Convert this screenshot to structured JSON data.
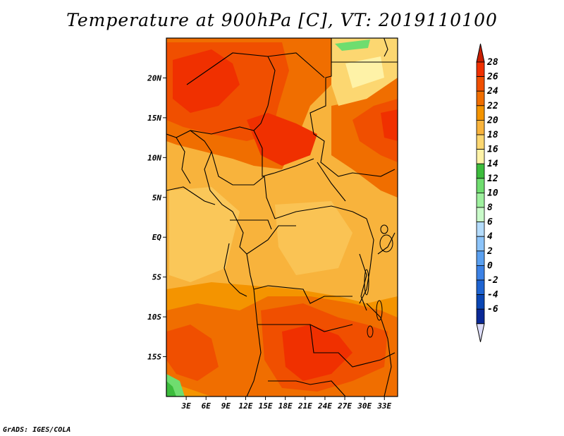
{
  "title": "Temperature at 900hPa [C], VT: 2019110100",
  "footer": "GrADS: IGES/COLA",
  "lat_ticks": [
    {
      "label": "20N",
      "lat": 20
    },
    {
      "label": "15N",
      "lat": 15
    },
    {
      "label": "10N",
      "lat": 10
    },
    {
      "label": "5N",
      "lat": 5
    },
    {
      "label": "EQ",
      "lat": 0
    },
    {
      "label": "5S",
      "lat": -5
    },
    {
      "label": "10S",
      "lat": -10
    },
    {
      "label": "15S",
      "lat": -15
    }
  ],
  "lon_ticks": [
    {
      "label": "3E",
      "lon": 3
    },
    {
      "label": "6E",
      "lon": 6
    },
    {
      "label": "9E",
      "lon": 9
    },
    {
      "label": "12E",
      "lon": 12
    },
    {
      "label": "15E",
      "lon": 15
    },
    {
      "label": "18E",
      "lon": 18
    },
    {
      "label": "21E",
      "lon": 21
    },
    {
      "label": "24E",
      "lon": 24
    },
    {
      "label": "27E",
      "lon": 27
    },
    {
      "label": "30E",
      "lon": 30
    },
    {
      "label": "33E",
      "lon": 33
    }
  ],
  "map_extent": {
    "lon": [
      0,
      35
    ],
    "lat": [
      -20,
      25
    ]
  },
  "colorbar": {
    "levels": [
      "28",
      "26",
      "24",
      "22",
      "20",
      "18",
      "16",
      "14",
      "12",
      "10",
      "8",
      "6",
      "4",
      "2",
      "0",
      "-2",
      "-4",
      "-6"
    ],
    "colors_top_to_bottom": [
      "#f03000",
      "#f04f00",
      "#f06e00",
      "#f49400",
      "#f8b33c",
      "#fcd771",
      "#fef2a7",
      "#3cbc3c",
      "#6fdd6f",
      "#9ef09e",
      "#c9fac9",
      "#b4dcfc",
      "#8cc4fa",
      "#5aa0f0",
      "#3c82e6",
      "#1e64d2",
      "#0a46b4",
      "#0a2896"
    ],
    "top_triangle_color": "#c81e00",
    "bottom_triangle_color": "#dcdcf8"
  }
}
